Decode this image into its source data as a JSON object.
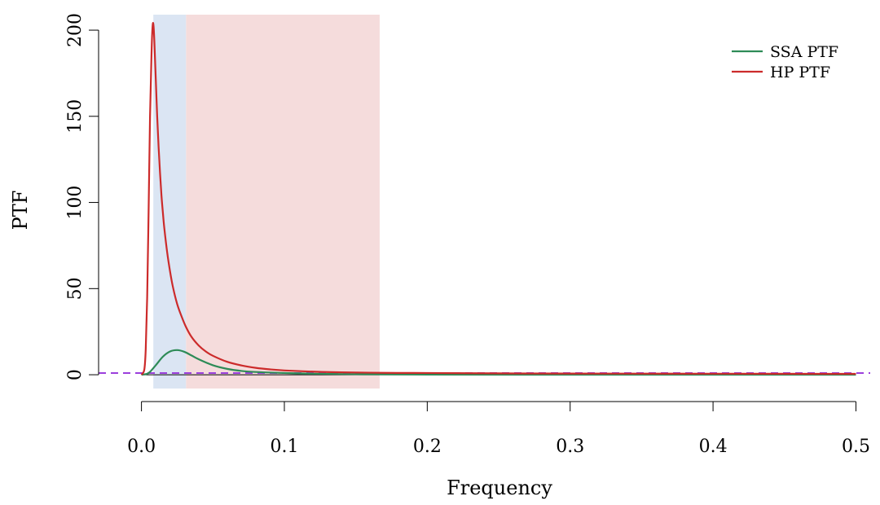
{
  "chart_data": {
    "type": "line",
    "title": "",
    "xlabel": "Frequency",
    "ylabel": "PTF",
    "xlim": [
      -0.03,
      0.51
    ],
    "ylim": [
      -8,
      209
    ],
    "x_ticks": [
      0.0,
      0.1,
      0.2,
      0.3,
      0.4,
      0.5
    ],
    "x_tick_labels": [
      "0.0",
      "0.1",
      "0.2",
      "0.3",
      "0.4",
      "0.5"
    ],
    "y_ticks": [
      0,
      50,
      100,
      150,
      200
    ],
    "y_tick_labels": [
      "0",
      "50",
      "100",
      "150",
      "200"
    ],
    "grid": false,
    "legend_position": "top-right",
    "shaded_bands": [
      {
        "x_from": 0.0083,
        "x_to": 0.0312,
        "color": "#dbe5f3"
      },
      {
        "x_from": 0.0312,
        "x_to": 0.1667,
        "color": "#f5dcdc"
      }
    ],
    "reference_line": {
      "y": 1,
      "color": "#9b3fdc",
      "style": "dashed"
    },
    "series": [
      {
        "name": "SSA PTF",
        "color": "#2e8b57",
        "x": [
          0,
          0.005,
          0.01,
          0.015,
          0.02,
          0.025,
          0.03,
          0.035,
          0.04,
          0.05,
          0.06,
          0.07,
          0.08,
          0.1,
          0.12,
          0.15,
          0.2,
          0.3,
          0.4,
          0.5
        ],
        "y": [
          0,
          1.0,
          5.5,
          10.5,
          13.5,
          14.3,
          13.3,
          11.2,
          9.0,
          5.5,
          3.4,
          2.2,
          1.6,
          1.0,
          0.6,
          0.3,
          0.1,
          0,
          0,
          0
        ]
      },
      {
        "name": "HP PTF",
        "color": "#cc2b2b",
        "x": [
          0,
          0.002,
          0.003,
          0.004,
          0.005,
          0.006,
          0.007,
          0.0075,
          0.008,
          0.0085,
          0.009,
          0.0095,
          0.01,
          0.011,
          0.012,
          0.013,
          0.014,
          0.015,
          0.016,
          0.018,
          0.02,
          0.022,
          0.025,
          0.028,
          0.031,
          0.035,
          0.04,
          0.045,
          0.05,
          0.06,
          0.07,
          0.08,
          0.09,
          0.1,
          0.12,
          0.14,
          0.17,
          0.2,
          0.25,
          0.3,
          0.4,
          0.5
        ],
        "y": [
          0,
          3,
          15,
          45,
          95,
          150,
          185,
          198,
          204,
          202,
          194,
          183,
          172,
          150,
          132,
          117,
          104,
          94,
          85,
          71,
          60,
          51,
          41,
          34,
          28,
          22,
          17,
          13.5,
          11,
          7.5,
          5.4,
          4.0,
          3.1,
          2.5,
          1.8,
          1.4,
          1.1,
          1.0,
          0.8,
          0.7,
          0.6,
          0.5
        ]
      }
    ]
  }
}
